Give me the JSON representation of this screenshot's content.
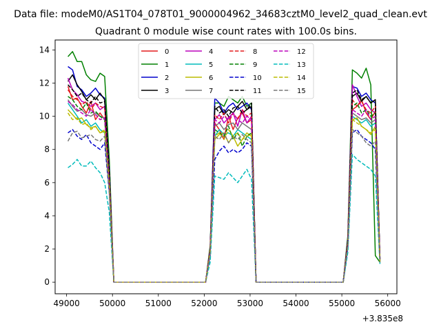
{
  "chart_data": {
    "type": "line",
    "suptitle": "Data file: modeM0/AS1T04_078T01_9000004962_34683cztM0_level2_quad_clean.evt",
    "title": "Quadrant 0 module wise count rates with 100.0s bins.",
    "xlabel": "",
    "ylabel": "",
    "x_offset_label": "+3.835e8",
    "xlim": [
      48750,
      56200
    ],
    "ylim": [
      -0.7,
      14.6
    ],
    "xticks": [
      49000,
      50000,
      51000,
      52000,
      53000,
      54000,
      55000,
      56000
    ],
    "xtick_labels": [
      "49000",
      "50000",
      "51000",
      "52000",
      "53000",
      "54000",
      "55000",
      "56000"
    ],
    "yticks": [
      0,
      2,
      4,
      6,
      8,
      10,
      12,
      14
    ],
    "ytick_labels": [
      "0",
      "2",
      "4",
      "6",
      "8",
      "10",
      "12",
      "14"
    ],
    "grid": false,
    "legend_position": "upper center",
    "legend_columns": 4,
    "x": [
      49030,
      49130,
      49230,
      49330,
      49430,
      49530,
      49630,
      49730,
      49830,
      49930,
      50030,
      50130,
      50230,
      50330,
      50430,
      50530,
      50630,
      50730,
      50830,
      50930,
      51030,
      51130,
      51230,
      51330,
      51430,
      51530,
      51630,
      51730,
      51830,
      51930,
      52030,
      52130,
      52230,
      52330,
      52430,
      52530,
      52630,
      52730,
      52830,
      52930,
      53030,
      53130,
      53230,
      53330,
      53430,
      53530,
      53630,
      53730,
      53830,
      53930,
      54030,
      54130,
      54230,
      54330,
      54430,
      54530,
      54630,
      54730,
      54830,
      54930,
      55030,
      55130,
      55230,
      55330,
      55430,
      55530,
      55630,
      55730,
      55830
    ],
    "series": [
      {
        "name": "0",
        "color": "#e41a1c",
        "dash": "solid",
        "y": [
          11.8,
          11.0,
          11.1,
          10.6,
          10.2,
          10.9,
          9.8,
          10.2,
          9.8,
          6.2,
          0,
          0,
          0,
          0,
          0,
          0,
          0,
          0,
          0,
          0,
          0,
          0,
          0,
          0,
          0,
          0,
          0,
          0,
          0,
          0,
          0,
          1.8,
          9.6,
          9.2,
          8.6,
          10.0,
          9.2,
          9.9,
          10.2,
          9.6,
          9.8,
          0,
          0,
          0,
          0,
          0,
          0,
          0,
          0,
          0,
          0,
          0,
          0,
          0,
          0,
          0,
          0,
          0,
          0,
          0,
          0,
          2.4,
          10.4,
          10.6,
          11.0,
          10.2,
          9.8,
          10.3,
          1.4
        ]
      },
      {
        "name": "1",
        "color": "#008000",
        "dash": "solid",
        "y": [
          13.6,
          13.9,
          13.3,
          13.3,
          12.5,
          12.2,
          12.1,
          12.6,
          12.4,
          7.4,
          0,
          0,
          0,
          0,
          0,
          0,
          0,
          0,
          0,
          0,
          0,
          0,
          0,
          0,
          0,
          0,
          0,
          0,
          0,
          0,
          0,
          2.2,
          10.8,
          10.8,
          10.6,
          11.2,
          11.0,
          10.8,
          11.2,
          10.6,
          10.8,
          0,
          0,
          0,
          0,
          0,
          0,
          0,
          0,
          0,
          0,
          0,
          0,
          0,
          0,
          0,
          0,
          0,
          0,
          0,
          0,
          2.8,
          12.8,
          12.6,
          12.3,
          12.9,
          11.9,
          1.6,
          1.2
        ]
      },
      {
        "name": "2",
        "color": "#0000cc",
        "dash": "solid",
        "y": [
          13.0,
          12.8,
          11.8,
          11.6,
          11.2,
          11.4,
          11.7,
          11.3,
          11.1,
          6.8,
          0,
          0,
          0,
          0,
          0,
          0,
          0,
          0,
          0,
          0,
          0,
          0,
          0,
          0,
          0,
          0,
          0,
          0,
          0,
          0,
          0,
          2.0,
          11.1,
          10.8,
          10.2,
          10.6,
          10.8,
          10.4,
          10.6,
          10.8,
          10.4,
          0,
          0,
          0,
          0,
          0,
          0,
          0,
          0,
          0,
          0,
          0,
          0,
          0,
          0,
          0,
          0,
          0,
          0,
          0,
          0,
          2.6,
          11.8,
          11.7,
          11.2,
          11.4,
          11.0,
          10.8,
          1.4
        ]
      },
      {
        "name": "3",
        "color": "#000000",
        "dash": "solid",
        "y": [
          12.1,
          12.5,
          11.9,
          11.5,
          11.0,
          11.3,
          11.0,
          11.4,
          11.0,
          6.6,
          0,
          0,
          0,
          0,
          0,
          0,
          0,
          0,
          0,
          0,
          0,
          0,
          0,
          0,
          0,
          0,
          0,
          0,
          0,
          0,
          0,
          2.0,
          10.4,
          10.6,
          10.1,
          10.4,
          10.2,
          10.6,
          10.9,
          10.4,
          10.6,
          0,
          0,
          0,
          0,
          0,
          0,
          0,
          0,
          0,
          0,
          0,
          0,
          0,
          0,
          0,
          0,
          0,
          0,
          0,
          0,
          2.6,
          11.2,
          11.4,
          10.9,
          11.2,
          10.8,
          11.0,
          1.4
        ]
      },
      {
        "name": "4",
        "color": "#bb00bb",
        "dash": "solid",
        "y": [
          12.3,
          11.6,
          11.3,
          10.9,
          10.8,
          10.6,
          10.8,
          10.4,
          10.6,
          6.4,
          0,
          0,
          0,
          0,
          0,
          0,
          0,
          0,
          0,
          0,
          0,
          0,
          0,
          0,
          0,
          0,
          0,
          0,
          0,
          0,
          0,
          1.9,
          9.8,
          10.1,
          9.6,
          9.9,
          10.2,
          9.4,
          10.4,
          9.6,
          10.0,
          0,
          0,
          0,
          0,
          0,
          0,
          0,
          0,
          0,
          0,
          0,
          0,
          0,
          0,
          0,
          0,
          0,
          0,
          0,
          0,
          2.5,
          11.9,
          11.2,
          10.6,
          10.8,
          10.4,
          10.2,
          1.3
        ]
      },
      {
        "name": "5",
        "color": "#00bbbb",
        "dash": "solid",
        "y": [
          10.8,
          10.4,
          10.0,
          9.6,
          9.8,
          9.4,
          9.6,
          9.2,
          9.0,
          5.6,
          0,
          0,
          0,
          0,
          0,
          0,
          0,
          0,
          0,
          0,
          0,
          0,
          0,
          0,
          0,
          0,
          0,
          0,
          0,
          0,
          0,
          1.8,
          8.8,
          9.2,
          8.9,
          9.0,
          8.8,
          9.2,
          9.0,
          8.8,
          8.6,
          0,
          0,
          0,
          0,
          0,
          0,
          0,
          0,
          0,
          0,
          0,
          0,
          0,
          0,
          0,
          0,
          0,
          0,
          0,
          0,
          2.3,
          10.0,
          9.8,
          9.6,
          9.8,
          9.4,
          9.6,
          1.2
        ]
      },
      {
        "name": "6",
        "color": "#bbbb00",
        "dash": "solid",
        "y": [
          10.4,
          10.1,
          9.8,
          9.9,
          9.5,
          9.3,
          9.4,
          9.0,
          9.1,
          5.8,
          0,
          0,
          0,
          0,
          0,
          0,
          0,
          0,
          0,
          0,
          0,
          0,
          0,
          0,
          0,
          0,
          0,
          0,
          0,
          0,
          0,
          1.7,
          8.6,
          8.9,
          9.0,
          8.4,
          8.8,
          8.2,
          8.6,
          9.0,
          8.8,
          0,
          0,
          0,
          0,
          0,
          0,
          0,
          0,
          0,
          0,
          0,
          0,
          0,
          0,
          0,
          0,
          0,
          0,
          0,
          0,
          2.2,
          9.8,
          9.9,
          9.4,
          9.2,
          8.9,
          9.4,
          1.2
        ]
      },
      {
        "name": "7",
        "color": "#777777",
        "dash": "solid",
        "y": [
          11.0,
          10.6,
          10.3,
          10.4,
          10.1,
          10.0,
          10.2,
          10.0,
          9.9,
          6.0,
          0,
          0,
          0,
          0,
          0,
          0,
          0,
          0,
          0,
          0,
          0,
          0,
          0,
          0,
          0,
          0,
          0,
          0,
          0,
          0,
          0,
          1.9,
          9.4,
          9.6,
          9.2,
          9.5,
          9.6,
          9.2,
          9.6,
          9.4,
          9.2,
          0,
          0,
          0,
          0,
          0,
          0,
          0,
          0,
          0,
          0,
          0,
          0,
          0,
          0,
          0,
          0,
          0,
          0,
          0,
          0,
          2.4,
          10.2,
          10.0,
          9.8,
          9.9,
          9.6,
          9.8,
          1.3
        ]
      },
      {
        "name": "8",
        "color": "#e41a1c",
        "dash": "dashed",
        "y": [
          11.6,
          11.2,
          11.0,
          10.7,
          10.9,
          10.4,
          10.8,
          10.6,
          10.5,
          6.5,
          0,
          0,
          0,
          0,
          0,
          0,
          0,
          0,
          0,
          0,
          0,
          0,
          0,
          0,
          0,
          0,
          0,
          0,
          0,
          0,
          0,
          2.0,
          10.1,
          9.8,
          10.2,
          9.6,
          10.2,
          9.8,
          10.4,
          10.0,
          10.2,
          0,
          0,
          0,
          0,
          0,
          0,
          0,
          0,
          0,
          0,
          0,
          0,
          0,
          0,
          0,
          0,
          0,
          0,
          0,
          0,
          2.5,
          11.0,
          10.6,
          10.9,
          10.4,
          10.2,
          10.6,
          1.4
        ]
      },
      {
        "name": "9",
        "color": "#008000",
        "dash": "dashed",
        "y": [
          11.2,
          11.0,
          10.6,
          10.4,
          10.8,
          10.2,
          10.3,
          10.0,
          9.8,
          6.2,
          0,
          0,
          0,
          0,
          0,
          0,
          0,
          0,
          0,
          0,
          0,
          0,
          0,
          0,
          0,
          0,
          0,
          0,
          0,
          0,
          0,
          1.8,
          9.2,
          9.0,
          8.8,
          9.4,
          8.6,
          9.0,
          8.2,
          8.8,
          9.0,
          0,
          0,
          0,
          0,
          0,
          0,
          0,
          0,
          0,
          0,
          0,
          0,
          0,
          0,
          0,
          0,
          0,
          0,
          0,
          0,
          2.4,
          10.6,
          10.8,
          10.2,
          10.4,
          10.0,
          10.2,
          1.3
        ]
      },
      {
        "name": "10",
        "color": "#0000cc",
        "dash": "dashed",
        "y": [
          9.0,
          9.2,
          8.8,
          8.6,
          8.9,
          8.4,
          8.2,
          8.0,
          8.4,
          5.4,
          0,
          0,
          0,
          0,
          0,
          0,
          0,
          0,
          0,
          0,
          0,
          0,
          0,
          0,
          0,
          0,
          0,
          0,
          0,
          0,
          0,
          1.6,
          7.4,
          7.9,
          8.2,
          7.8,
          8.0,
          7.8,
          8.0,
          8.4,
          8.2,
          0,
          0,
          0,
          0,
          0,
          0,
          0,
          0,
          0,
          0,
          0,
          0,
          0,
          0,
          0,
          0,
          0,
          0,
          0,
          0,
          2.1,
          9.0,
          9.2,
          8.8,
          8.6,
          8.4,
          8.0,
          1.1
        ]
      },
      {
        "name": "11",
        "color": "#000000",
        "dash": "dashed",
        "y": [
          11.9,
          11.6,
          11.2,
          11.4,
          11.0,
          10.8,
          11.2,
          10.8,
          10.9,
          6.6,
          0,
          0,
          0,
          0,
          0,
          0,
          0,
          0,
          0,
          0,
          0,
          0,
          0,
          0,
          0,
          0,
          0,
          0,
          0,
          0,
          0,
          2.0,
          10.6,
          10.2,
          10.4,
          10.0,
          10.5,
          10.6,
          10.2,
          10.4,
          10.8,
          0,
          0,
          0,
          0,
          0,
          0,
          0,
          0,
          0,
          0,
          0,
          0,
          0,
          0,
          0,
          0,
          0,
          0,
          0,
          0,
          2.6,
          11.4,
          11.6,
          11.0,
          11.2,
          10.8,
          11.0,
          1.4
        ]
      },
      {
        "name": "12",
        "color": "#bb00bb",
        "dash": "dashed",
        "y": [
          10.9,
          10.7,
          10.4,
          10.2,
          10.0,
          10.4,
          10.1,
          9.8,
          9.9,
          6.0,
          0,
          0,
          0,
          0,
          0,
          0,
          0,
          0,
          0,
          0,
          0,
          0,
          0,
          0,
          0,
          0,
          0,
          0,
          0,
          0,
          0,
          1.9,
          9.8,
          9.6,
          10.0,
          9.8,
          10.2,
          9.8,
          9.6,
          10.0,
          9.8,
          0,
          0,
          0,
          0,
          0,
          0,
          0,
          0,
          0,
          0,
          0,
          0,
          0,
          0,
          0,
          0,
          0,
          0,
          0,
          0,
          2.4,
          10.4,
          10.2,
          10.0,
          10.4,
          9.8,
          10.0,
          1.3
        ]
      },
      {
        "name": "13",
        "color": "#00bbbb",
        "dash": "dashed",
        "y": [
          6.9,
          7.1,
          7.4,
          7.0,
          7.0,
          7.3,
          6.9,
          6.6,
          6.0,
          4.2,
          0,
          0,
          0,
          0,
          0,
          0,
          0,
          0,
          0,
          0,
          0,
          0,
          0,
          0,
          0,
          0,
          0,
          0,
          0,
          0,
          0,
          1.2,
          6.4,
          6.3,
          6.2,
          6.6,
          6.3,
          6.0,
          6.4,
          6.8,
          6.2,
          0,
          0,
          0,
          0,
          0,
          0,
          0,
          0,
          0,
          0,
          0,
          0,
          0,
          0,
          0,
          0,
          0,
          0,
          0,
          0,
          1.8,
          7.7,
          7.4,
          7.2,
          7.0,
          6.8,
          6.4,
          1.1
        ]
      },
      {
        "name": "14",
        "color": "#bbbb00",
        "dash": "dashed",
        "y": [
          10.2,
          9.8,
          9.9,
          9.5,
          9.6,
          9.2,
          9.4,
          9.0,
          9.2,
          5.8,
          0,
          0,
          0,
          0,
          0,
          0,
          0,
          0,
          0,
          0,
          0,
          0,
          0,
          0,
          0,
          0,
          0,
          0,
          0,
          0,
          0,
          1.8,
          8.8,
          9.0,
          8.6,
          9.2,
          8.8,
          9.0,
          8.6,
          8.8,
          8.9,
          0,
          0,
          0,
          0,
          0,
          0,
          0,
          0,
          0,
          0,
          0,
          0,
          0,
          0,
          0,
          0,
          0,
          0,
          0,
          0,
          2.3,
          9.8,
          9.6,
          9.4,
          9.2,
          9.0,
          9.2,
          1.2
        ]
      },
      {
        "name": "15",
        "color": "#777777",
        "dash": "dashed",
        "y": [
          8.5,
          9.0,
          9.1,
          8.7,
          8.8,
          8.9,
          8.6,
          8.5,
          8.8,
          5.4,
          0,
          0,
          0,
          0,
          0,
          0,
          0,
          0,
          0,
          0,
          0,
          0,
          0,
          0,
          0,
          0,
          0,
          0,
          0,
          0,
          0,
          1.7,
          8.8,
          8.6,
          9.0,
          8.4,
          8.8,
          8.6,
          8.9,
          8.6,
          8.4,
          0,
          0,
          0,
          0,
          0,
          0,
          0,
          0,
          0,
          0,
          0,
          0,
          0,
          0,
          0,
          0,
          0,
          0,
          0,
          0,
          2.2,
          9.2,
          9.0,
          8.8,
          8.4,
          8.2,
          8.5,
          1.2
        ]
      }
    ]
  }
}
